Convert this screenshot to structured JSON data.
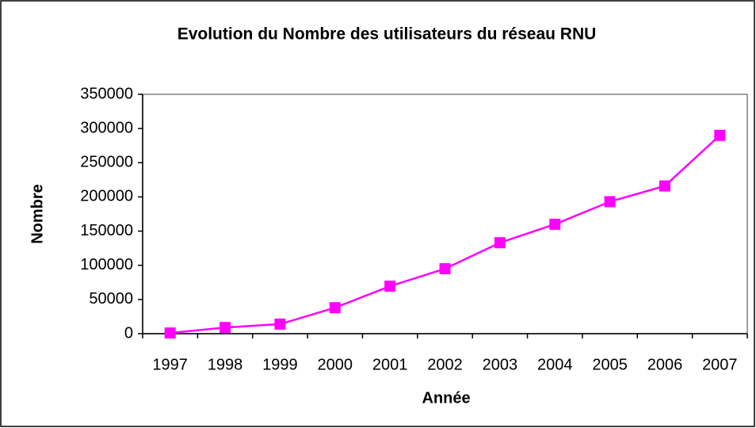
{
  "chart_data": {
    "type": "line",
    "title": "Evolution du Nombre des utilisateurs du réseau RNU",
    "x_label": "Année",
    "y_label": "Nombre",
    "categories": [
      "1997",
      "1998",
      "1999",
      "2000",
      "2001",
      "2002",
      "2003",
      "2004",
      "2005",
      "2006",
      "2007"
    ],
    "series": [
      {
        "name": "Nombre",
        "color": "#ff00ff",
        "values": [
          1000,
          9000,
          14000,
          38000,
          69500,
          95000,
          133000,
          160000,
          193000,
          216000,
          290000
        ]
      }
    ],
    "ylim": [
      0,
      350000
    ],
    "yticks": [
      0,
      50000,
      100000,
      150000,
      200000,
      250000,
      300000,
      350000
    ],
    "grid": false,
    "legend": false
  }
}
